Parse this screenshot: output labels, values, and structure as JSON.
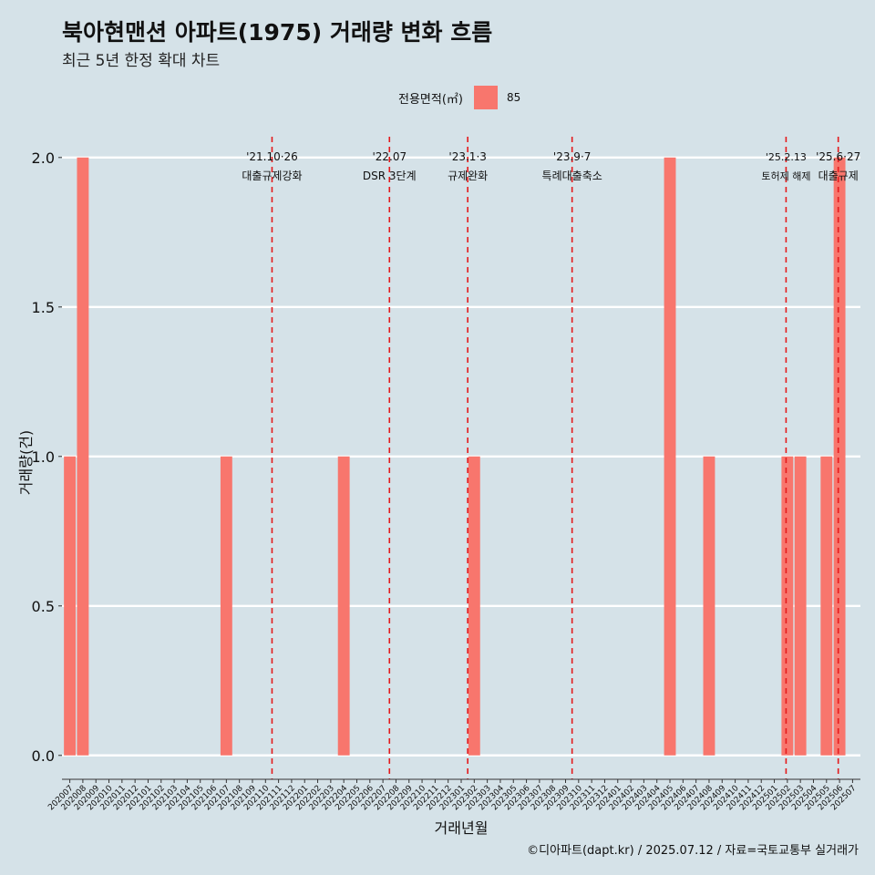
{
  "page": {
    "title": "북아현맨션 아파트(1975) 거래량 변화 흐름",
    "subtitle": "최근 5년 한정 확대 차트",
    "caption": "©디아파트(dapt.kr) / 2025.07.12 / 자료=국토교통부 실거래가"
  },
  "legend": {
    "title": "전용면적(㎡)",
    "items": [
      {
        "label": "85",
        "color": "#f8766d"
      }
    ]
  },
  "chart_data": {
    "type": "bar",
    "title": "북아현맨션 아파트(1975) 거래량 변화 흐름",
    "subtitle": "최근 5년 한정 확대 차트",
    "xlabel": "거래년월",
    "ylabel": "거래량(건)",
    "ylim": [
      -0.08,
      2.1
    ],
    "yticks": [
      0.0,
      0.5,
      1.0,
      1.5,
      2.0
    ],
    "ytick_labels": [
      "0.0",
      "0.5",
      "1.0",
      "1.5",
      "2.0"
    ],
    "grid": "horizontal",
    "categories": [
      "202007",
      "202008",
      "202009",
      "202010",
      "202011",
      "202012",
      "202101",
      "202102",
      "202103",
      "202104",
      "202105",
      "202106",
      "202107",
      "202108",
      "202109",
      "202110",
      "202111",
      "202112",
      "202201",
      "202202",
      "202203",
      "202204",
      "202205",
      "202206",
      "202207",
      "202208",
      "202209",
      "202210",
      "202211",
      "202212",
      "202301",
      "202302",
      "202303",
      "202304",
      "202305",
      "202306",
      "202307",
      "202308",
      "202309",
      "202310",
      "202311",
      "202312",
      "202401",
      "202402",
      "202403",
      "202404",
      "202405",
      "202406",
      "202407",
      "202408",
      "202409",
      "202410",
      "202411",
      "202412",
      "202501",
      "202502",
      "202503",
      "202504",
      "202505",
      "202506",
      "202507"
    ],
    "series": [
      {
        "name": "85",
        "color": "#f8766d",
        "values": [
          1,
          2,
          0,
          0,
          0,
          0,
          0,
          0,
          0,
          0,
          0,
          0,
          1,
          0,
          0,
          0,
          0,
          0,
          0,
          0,
          0,
          1,
          0,
          0,
          0,
          0,
          0,
          0,
          0,
          0,
          0,
          1,
          0,
          0,
          0,
          0,
          0,
          0,
          0,
          0,
          0,
          0,
          0,
          0,
          0,
          0,
          2,
          0,
          0,
          1,
          0,
          0,
          0,
          0,
          0,
          1,
          1,
          0,
          1,
          2,
          0
        ]
      }
    ],
    "annotations": [
      {
        "x": 15.5,
        "date": "'21.10·26",
        "text": "대출규제강화",
        "color": "#e41a1c"
      },
      {
        "x": 24.5,
        "date": "'22.07",
        "text": "DSR 3단계",
        "color": "#e41a1c"
      },
      {
        "x": 30.5,
        "date": "'23.1·3",
        "text": "규제완화",
        "color": "#e41a1c"
      },
      {
        "x": 38.5,
        "date": "'23.9·7",
        "text": "특례대출축소",
        "color": "#e41a1c"
      },
      {
        "x": 54.9,
        "date": "'25.2.13",
        "text": "토허제 해제",
        "color": "#e41a1c"
      },
      {
        "x": 58.9,
        "date": "'25.6·27",
        "text": "대출규제",
        "color": "#e41a1c"
      }
    ]
  }
}
